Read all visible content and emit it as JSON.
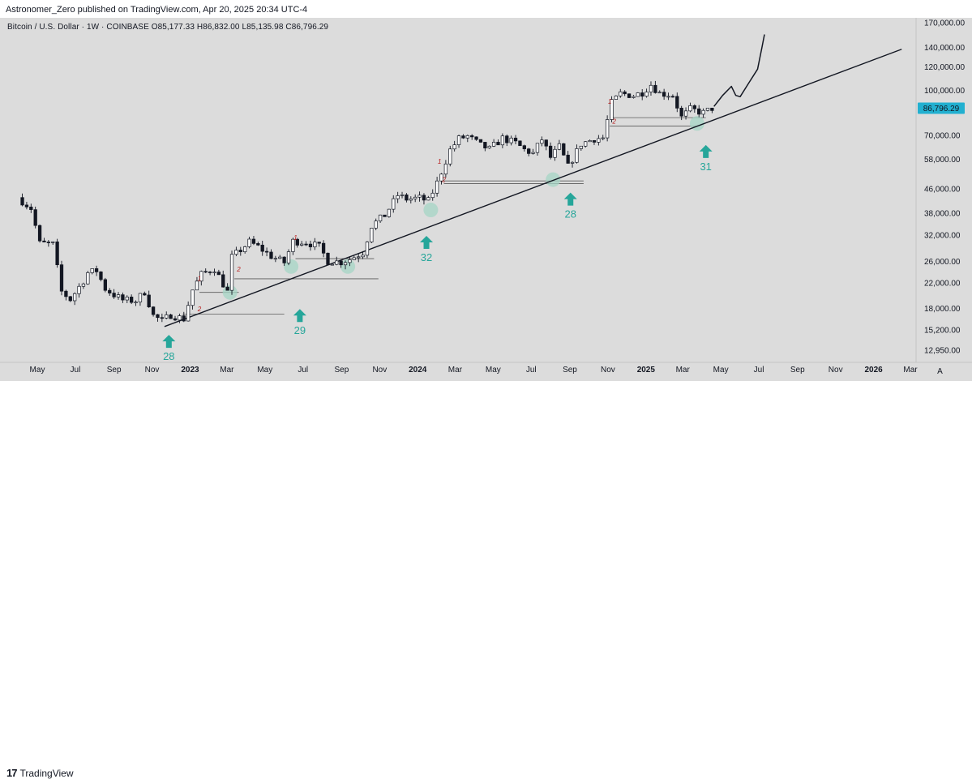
{
  "header": {
    "publisher": "Astronomer_Zero published on TradingView.com, Apr 20, 2025 20:34 UTC-4"
  },
  "symbol": {
    "info": "Bitcoin / U.S. Dollar · 1W · COINBASE  O85,177.33  H86,832.00  L85,135.98  C86,796.29"
  },
  "footer": {
    "brand": "TradingView",
    "logo_mark": "17"
  },
  "colors": {
    "up_candle": "#ffffff",
    "down_candle": "#131722",
    "arrow_teal": "#26a69a",
    "circle_fill": "#a5d6c6",
    "price_label_bg": "#22b0d0",
    "trendline": "#131722",
    "grid": "#cfcfcf"
  },
  "chart_data": {
    "type": "candlestick",
    "instrument": "Bitcoin / U.S. Dollar",
    "interval": "1W",
    "exchange": "COINBASE",
    "ohlc_last": {
      "open": 85177.33,
      "high": 86832.0,
      "low": 85135.98,
      "close": 86796.29
    },
    "y_scale": "log",
    "y_range": [
      12000,
      180000
    ],
    "y_ticks": [
      {
        "value": 170000,
        "label": "170,000.00"
      },
      {
        "value": 140000,
        "label": "140,000.00"
      },
      {
        "value": 120000,
        "label": "120,000.00"
      },
      {
        "value": 100000,
        "label": "100,000.00"
      },
      {
        "value": 70000,
        "label": "70,000.00"
      },
      {
        "value": 58000,
        "label": "58,000.00"
      },
      {
        "value": 46000,
        "label": "46,000.00"
      },
      {
        "value": 38000,
        "label": "38,000.00"
      },
      {
        "value": 32000,
        "label": "32,000.00"
      },
      {
        "value": 26000,
        "label": "26,000.00"
      },
      {
        "value": 22000,
        "label": "22,000.00"
      },
      {
        "value": 18000,
        "label": "18,000.00"
      },
      {
        "value": 15200,
        "label": "15,200.00"
      },
      {
        "value": 12950,
        "label": "12,950.00"
      }
    ],
    "x_range": [
      "2022-04-01",
      "2026-04-15"
    ],
    "x_ticks": [
      {
        "date": "2022-05-01",
        "label": "May"
      },
      {
        "date": "2022-07-01",
        "label": "Jul"
      },
      {
        "date": "2022-09-01",
        "label": "Sep"
      },
      {
        "date": "2022-11-01",
        "label": "Nov"
      },
      {
        "date": "2023-01-01",
        "label": "2023"
      },
      {
        "date": "2023-03-01",
        "label": "Mar"
      },
      {
        "date": "2023-05-01",
        "label": "May"
      },
      {
        "date": "2023-07-01",
        "label": "Jul"
      },
      {
        "date": "2023-09-01",
        "label": "Sep"
      },
      {
        "date": "2023-11-01",
        "label": "Nov"
      },
      {
        "date": "2024-01-01",
        "label": "2024"
      },
      {
        "date": "2024-03-01",
        "label": "Mar"
      },
      {
        "date": "2024-05-01",
        "label": "May"
      },
      {
        "date": "2024-07-01",
        "label": "Jul"
      },
      {
        "date": "2024-09-01",
        "label": "Sep"
      },
      {
        "date": "2024-11-01",
        "label": "Nov"
      },
      {
        "date": "2025-01-01",
        "label": "2025"
      },
      {
        "date": "2025-03-01",
        "label": "Mar"
      },
      {
        "date": "2025-05-01",
        "label": "May"
      },
      {
        "date": "2025-07-01",
        "label": "Jul"
      },
      {
        "date": "2025-09-01",
        "label": "Sep"
      },
      {
        "date": "2025-11-01",
        "label": "Nov"
      },
      {
        "date": "2026-01-01",
        "label": "2026"
      },
      {
        "date": "2026-03-01",
        "label": "Mar"
      }
    ],
    "price_path": [
      [
        "2022-04-04",
        43000
      ],
      [
        "2022-04-25",
        39500
      ],
      [
        "2022-05-09",
        30000
      ],
      [
        "2022-05-30",
        29800
      ],
      [
        "2022-06-13",
        20500
      ],
      [
        "2022-06-27",
        19300
      ],
      [
        "2022-07-18",
        22400
      ],
      [
        "2022-07-25",
        23800
      ],
      [
        "2022-08-08",
        24200
      ],
      [
        "2022-08-22",
        21000
      ],
      [
        "2022-09-05",
        20000
      ],
      [
        "2022-09-19",
        19200
      ],
      [
        "2022-10-10",
        19100
      ],
      [
        "2022-10-24",
        20500
      ],
      [
        "2022-11-07",
        17000
      ],
      [
        "2022-11-21",
        16300
      ],
      [
        "2022-12-05",
        17100
      ],
      [
        "2022-12-26",
        16550
      ],
      [
        "2023-01-09",
        20800
      ],
      [
        "2023-01-23",
        23500
      ],
      [
        "2023-02-13",
        24600
      ],
      [
        "2023-03-06",
        20500
      ],
      [
        "2023-03-13",
        26900
      ],
      [
        "2023-03-27",
        28500
      ],
      [
        "2023-04-10",
        30300
      ],
      [
        "2023-04-24",
        29200
      ],
      [
        "2023-05-15",
        27100
      ],
      [
        "2023-06-05",
        25800
      ],
      [
        "2023-06-19",
        30500
      ],
      [
        "2023-07-10",
        30300
      ],
      [
        "2023-07-31",
        29200
      ],
      [
        "2023-08-14",
        26100
      ],
      [
        "2023-09-04",
        25900
      ],
      [
        "2023-09-18",
        26500
      ],
      [
        "2023-10-09",
        27900
      ],
      [
        "2023-10-23",
        34500
      ],
      [
        "2023-11-13",
        37400
      ],
      [
        "2023-12-04",
        43800
      ],
      [
        "2023-12-18",
        42500
      ],
      [
        "2024-01-08",
        42800
      ],
      [
        "2024-01-22",
        41800
      ],
      [
        "2024-02-05",
        48300
      ],
      [
        "2024-02-26",
        62500
      ],
      [
        "2024-03-11",
        68300
      ],
      [
        "2024-03-25",
        69600
      ],
      [
        "2024-04-15",
        64800
      ],
      [
        "2024-04-29",
        62900
      ],
      [
        "2024-05-20",
        68500
      ],
      [
        "2024-06-10",
        66000
      ],
      [
        "2024-06-24",
        62600
      ],
      [
        "2024-07-08",
        60800
      ],
      [
        "2024-07-22",
        68000
      ],
      [
        "2024-08-05",
        58900
      ],
      [
        "2024-08-19",
        64100
      ],
      [
        "2024-09-02",
        54800
      ],
      [
        "2024-09-23",
        65600
      ],
      [
        "2024-10-14",
        68300
      ],
      [
        "2024-10-28",
        68700
      ],
      [
        "2024-11-11",
        90500
      ],
      [
        "2024-11-25",
        97400
      ],
      [
        "2024-12-16",
        96000
      ],
      [
        "2024-12-30",
        98300
      ],
      [
        "2025-01-13",
        104500
      ],
      [
        "2025-01-27",
        97600
      ],
      [
        "2025-02-17",
        96300
      ],
      [
        "2025-03-03",
        80700
      ],
      [
        "2025-03-17",
        86100
      ],
      [
        "2025-04-07",
        83700
      ],
      [
        "2025-04-14",
        85200
      ],
      [
        "2025-04-20",
        86796
      ]
    ],
    "projection_path": [
      [
        "2025-04-20",
        88000
      ],
      [
        "2025-05-04",
        96000
      ],
      [
        "2025-05-18",
        103000
      ],
      [
        "2025-05-25",
        96000
      ],
      [
        "2025-06-01",
        95000
      ],
      [
        "2025-06-15",
        106000
      ],
      [
        "2025-06-29",
        118000
      ],
      [
        "2025-07-06",
        140000
      ],
      [
        "2025-07-10",
        155000
      ]
    ],
    "trendline": {
      "start": [
        "2022-11-21",
        15600
      ],
      "end": [
        "2026-02-15",
        138000
      ]
    },
    "support_lines": [
      {
        "from": "2022-12-20",
        "to": "2023-06-01",
        "y": 17200
      },
      {
        "from": "2023-01-16",
        "to": "2023-03-20",
        "y": 20400
      },
      {
        "from": "2023-03-13",
        "to": "2023-10-30",
        "y": 22700
      },
      {
        "from": "2023-06-19",
        "to": "2023-10-23",
        "y": 26600
      },
      {
        "from": "2024-02-12",
        "to": "2024-09-23",
        "y": 49000
      },
      {
        "from": "2024-02-12",
        "to": "2024-09-23",
        "y": 48000
      },
      {
        "from": "2024-11-04",
        "to": "2025-04-07",
        "y": 80600
      },
      {
        "from": "2024-11-04",
        "to": "2025-03-24",
        "y": 75400
      }
    ],
    "retest_circles": [
      {
        "date": "2023-03-06",
        "y": 20400
      },
      {
        "date": "2023-06-12",
        "y": 25000
      },
      {
        "date": "2023-09-11",
        "y": 25000
      },
      {
        "date": "2024-01-22",
        "y": 39000
      },
      {
        "date": "2024-08-05",
        "y": 49500
      },
      {
        "date": "2025-03-24",
        "y": 77000
      }
    ],
    "wave_markers": [
      {
        "date": "2023-01-16",
        "y": 22300,
        "text": "1"
      },
      {
        "date": "2023-01-16",
        "y": 17600,
        "text": "2"
      },
      {
        "date": "2023-03-20",
        "y": 24000,
        "text": "2"
      },
      {
        "date": "2023-06-19",
        "y": 30800,
        "text": "1"
      },
      {
        "date": "2024-02-05",
        "y": 56000,
        "text": "1"
      },
      {
        "date": "2024-02-12",
        "y": 48600,
        "text": "2"
      },
      {
        "date": "2024-11-04",
        "y": 90000,
        "text": "1"
      },
      {
        "date": "2024-11-11",
        "y": 77000,
        "text": "2"
      }
    ],
    "arrows": [
      {
        "date": "2022-11-28",
        "y": 14600,
        "label": "28"
      },
      {
        "date": "2023-06-26",
        "y": 17900,
        "label": "29"
      },
      {
        "date": "2024-01-15",
        "y": 31800,
        "label": "32"
      },
      {
        "date": "2024-09-02",
        "y": 44700,
        "label": "28"
      },
      {
        "date": "2025-04-07",
        "y": 65000,
        "label": "31"
      }
    ],
    "current_price_label": "86,796.29"
  }
}
